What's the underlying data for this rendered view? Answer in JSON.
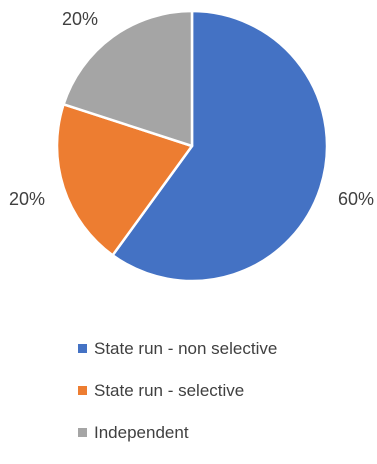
{
  "chart_data": {
    "type": "pie",
    "title": "",
    "categories": [
      "State run - non selective",
      "State run - selective",
      "Independent"
    ],
    "values": [
      60,
      20,
      20
    ],
    "labels": [
      "60%",
      "20%",
      "20%"
    ],
    "colors": [
      "#4472C4",
      "#ED7D31",
      "#A5A5A5"
    ],
    "start_angle_deg": 0,
    "direction": "clockwise",
    "legend_position": "bottom"
  }
}
